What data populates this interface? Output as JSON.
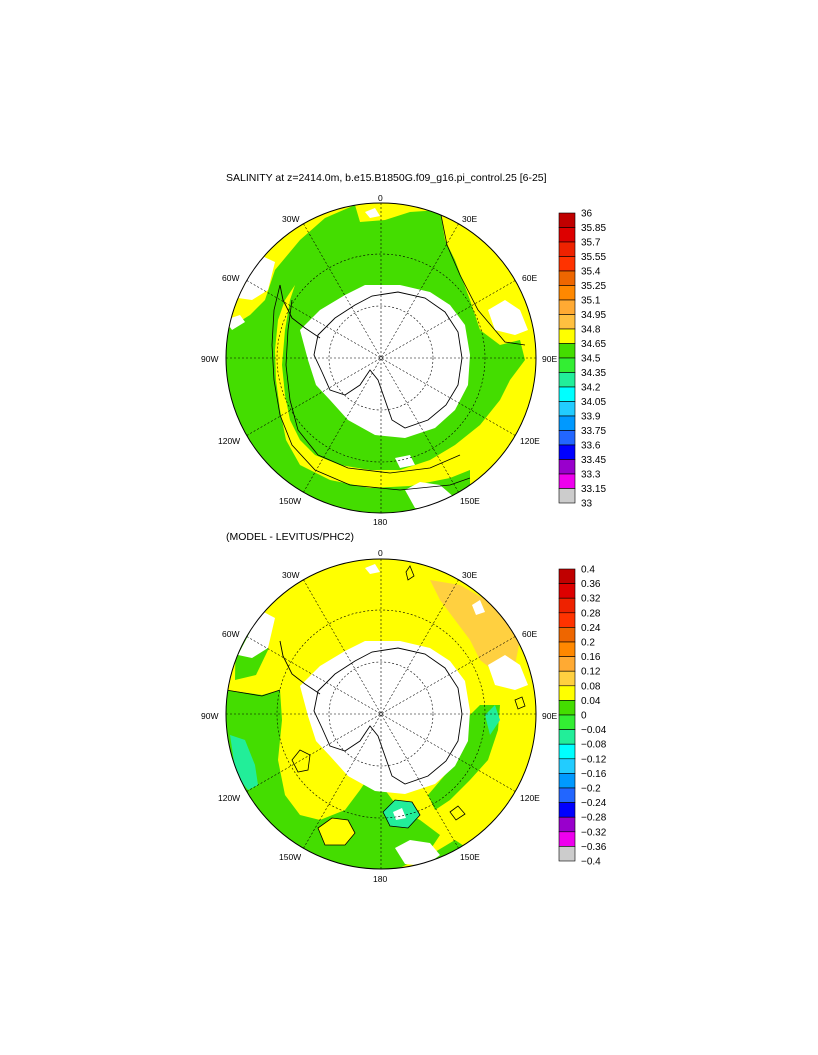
{
  "top_panel": {
    "title": "SALINITY at z=2414.0m, b.e15.B1850G.f09_g16.pi_control.25 [6-25]",
    "lon_labels": {
      "n0": "0",
      "n30e": "30E",
      "n60e": "60E",
      "n90e": "90E",
      "n120e": "120E",
      "n150e": "150E",
      "n180": "180",
      "n150w": "150W",
      "n120w": "120W",
      "n90w": "90W",
      "n60w": "60W",
      "n30w": "30W"
    },
    "colorbar": {
      "labels": [
        "36",
        "35.85",
        "35.7",
        "35.55",
        "35.4",
        "35.25",
        "35.1",
        "34.95",
        "34.8",
        "34.65",
        "34.5",
        "34.35",
        "34.2",
        "34.05",
        "33.9",
        "33.75",
        "33.6",
        "33.45",
        "33.3",
        "33.15",
        "33"
      ],
      "colors": [
        "#c00000",
        "#dd0000",
        "#ee2200",
        "#ff3300",
        "#ee6600",
        "#ff8800",
        "#ffaa33",
        "#ffc040",
        "#ffff00",
        "#44dd00",
        "#33ee33",
        "#22ee99",
        "#00ffff",
        "#22ccff",
        "#0099ff",
        "#2266ff",
        "#0000ff",
        "#9900cc",
        "#ee00ee",
        "#cccccc"
      ]
    }
  },
  "bottom_panel": {
    "title": "(MODEL - LEVITUS/PHC2)",
    "lon_labels": {
      "n0": "0",
      "n30e": "30E",
      "n60e": "60E",
      "n90e": "90E",
      "n120e": "120E",
      "n150e": "150E",
      "n180": "180",
      "n150w": "150W",
      "n120w": "120W",
      "n90w": "90W",
      "n60w": "60W",
      "n30w": "30W"
    },
    "colorbar": {
      "labels": [
        "0.4",
        "0.36",
        "0.32",
        "0.28",
        "0.24",
        "0.2",
        "0.16",
        "0.12",
        "0.08",
        "0.04",
        "0",
        "−0.04",
        "−0.08",
        "−0.12",
        "−0.16",
        "−0.2",
        "−0.24",
        "−0.28",
        "−0.32",
        "−0.36",
        "−0.4"
      ],
      "colors": [
        "#c00000",
        "#dd0000",
        "#ee2200",
        "#ff3300",
        "#ee6600",
        "#ff8800",
        "#ffaa33",
        "#ffd040",
        "#ffff00",
        "#44dd00",
        "#33ee33",
        "#22ee99",
        "#00ffff",
        "#22ccff",
        "#0099ff",
        "#2266ff",
        "#0000ff",
        "#9900cc",
        "#ee00ee",
        "#cccccc"
      ]
    }
  },
  "colors": {
    "antarctica_land": "#ffffff",
    "missing": "#ffffff",
    "yellow": "#ffff00",
    "green": "#44dd00",
    "orange": "#ffd040",
    "teal": "#22ee99"
  }
}
